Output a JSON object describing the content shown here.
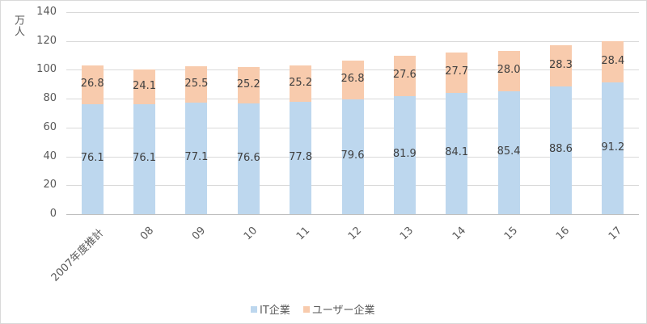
{
  "chart_data": {
    "type": "bar",
    "stacked": true,
    "title": "",
    "xlabel": "",
    "ylabel": "万人",
    "ylim": [
      0,
      140
    ],
    "yticks": [
      0,
      20,
      40,
      60,
      80,
      100,
      120,
      140
    ],
    "grid": true,
    "legend_position": "bottom",
    "categories": [
      "2007年度推計",
      "08",
      "09",
      "10",
      "11",
      "12",
      "13",
      "14",
      "15",
      "16",
      "17"
    ],
    "series": [
      {
        "name": "IT企業",
        "color": "#bdd7ee",
        "values": [
          76.1,
          76.1,
          77.1,
          76.6,
          77.8,
          79.6,
          81.9,
          84.1,
          85.4,
          88.6,
          91.2
        ]
      },
      {
        "name": "ユーザー企業",
        "color": "#f8cbad",
        "values": [
          26.8,
          24.1,
          25.5,
          25.2,
          25.2,
          26.8,
          27.6,
          27.7,
          28.0,
          28.3,
          28.4
        ]
      }
    ]
  },
  "legend": {
    "it_label": "IT企業",
    "user_label": "ユーザー企業"
  },
  "axis": {
    "ylabel": "万人"
  }
}
